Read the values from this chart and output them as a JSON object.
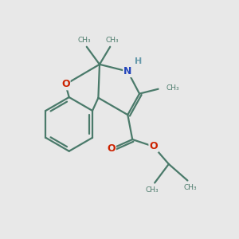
{
  "bg_color": "#e8e8e8",
  "bond_color": "#4a7a6a",
  "bond_width": 1.6,
  "O_color": "#cc2200",
  "N_color": "#2244bb",
  "H_color": "#6699aa",
  "figsize": [
    3.0,
    3.0
  ],
  "dpi": 100,
  "xlim": [
    0,
    10
  ],
  "ylim": [
    0,
    10
  ]
}
